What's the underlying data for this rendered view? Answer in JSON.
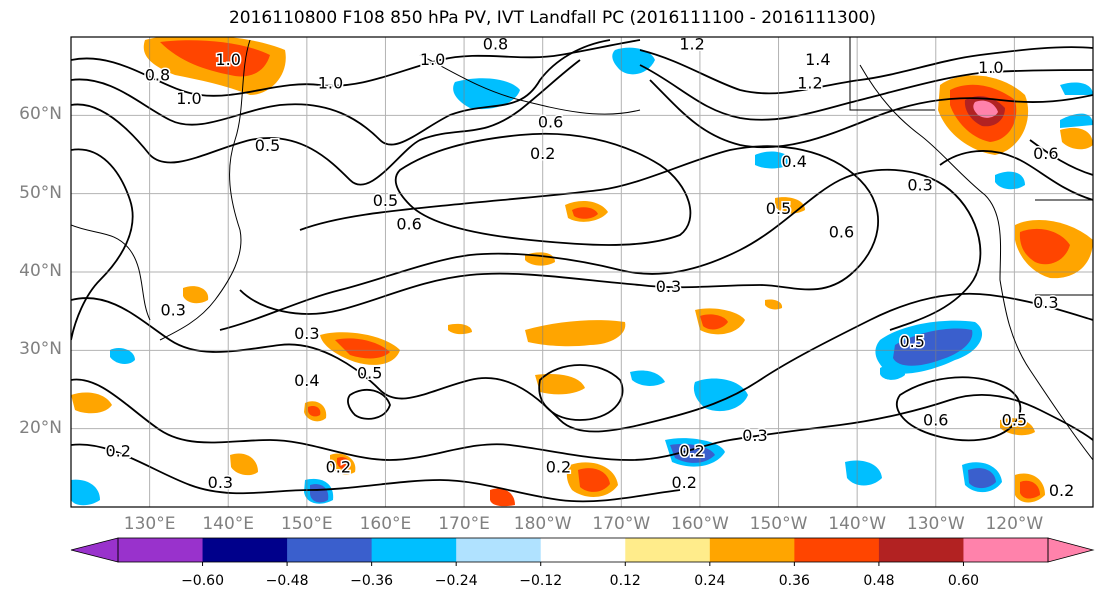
{
  "title": "2016110800 F108 850 hPa PV, IVT Landfall PC (2016111100 - 2016111300)",
  "lat_labels": [
    {
      "text": "60°N",
      "lat": 60
    },
    {
      "text": "50°N",
      "lat": 50
    },
    {
      "text": "40°N",
      "lat": 40
    },
    {
      "text": "30°N",
      "lat": 30
    },
    {
      "text": "20°N",
      "lat": 20
    }
  ],
  "lon_labels": [
    {
      "text": "130°E",
      "lon": 130
    },
    {
      "text": "140°E",
      "lon": 140
    },
    {
      "text": "150°E",
      "lon": 150
    },
    {
      "text": "160°E",
      "lon": 160
    },
    {
      "text": "170°E",
      "lon": 170
    },
    {
      "text": "180°W",
      "lon": 180
    },
    {
      "text": "170°W",
      "lon": 190
    },
    {
      "text": "160°W",
      "lon": 200
    },
    {
      "text": "150°W",
      "lon": 210
    },
    {
      "text": "140°W",
      "lon": 220
    },
    {
      "text": "130°W",
      "lon": 230
    },
    {
      "text": "120°W",
      "lon": 240
    }
  ],
  "colorbar": {
    "colors": [
      "#9932cc",
      "#00008b",
      "#3a5fcd",
      "#00bfff",
      "#b0e2ff",
      "#ffffff",
      "#ffec8b",
      "#ffa500",
      "#ff4500",
      "#b22222",
      "#ff82ab"
    ],
    "labels": [
      "−0.60",
      "−0.48",
      "−0.36",
      "−0.24",
      "−0.12",
      "0.12",
      "0.24",
      "0.36",
      "0.48",
      "0.60"
    ]
  },
  "pv_contour_labels": [
    {
      "text": "0.8",
      "lon": 131,
      "lat": 65
    },
    {
      "text": "1.0",
      "lon": 140,
      "lat": 67
    },
    {
      "text": "1.0",
      "lon": 135,
      "lat": 62
    },
    {
      "text": "0.8",
      "lon": 174,
      "lat": 69
    },
    {
      "text": "1.0",
      "lon": 166,
      "lat": 67
    },
    {
      "text": "1.0",
      "lon": 153,
      "lat": 64
    },
    {
      "text": "1.2",
      "lon": 199,
      "lat": 69
    },
    {
      "text": "1.4",
      "lon": 215,
      "lat": 67
    },
    {
      "text": "1.2",
      "lon": 214,
      "lat": 64
    },
    {
      "text": "1.0",
      "lon": 237,
      "lat": 66
    },
    {
      "text": "0.6",
      "lon": 181,
      "lat": 59
    },
    {
      "text": "0.5",
      "lon": 145,
      "lat": 56
    },
    {
      "text": "0.2",
      "lon": 180,
      "lat": 55
    },
    {
      "text": "0.4",
      "lon": 212,
      "lat": 54
    },
    {
      "text": "0.3",
      "lon": 228,
      "lat": 51
    },
    {
      "text": "0.6",
      "lon": 244,
      "lat": 55
    },
    {
      "text": "0.5",
      "lon": 160,
      "lat": 49
    },
    {
      "text": "0.6",
      "lon": 163,
      "lat": 46
    },
    {
      "text": "0.5",
      "lon": 210,
      "lat": 48
    },
    {
      "text": "0.6",
      "lon": 218,
      "lat": 45
    },
    {
      "text": "0.3",
      "lon": 196,
      "lat": 38
    },
    {
      "text": "0.3",
      "lon": 150,
      "lat": 32
    },
    {
      "text": "0.3",
      "lon": 133,
      "lat": 35
    },
    {
      "text": "0.5",
      "lon": 227,
      "lat": 31
    },
    {
      "text": "0.3",
      "lon": 244,
      "lat": 36
    },
    {
      "text": "0.4",
      "lon": 150,
      "lat": 26
    },
    {
      "text": "0.5",
      "lon": 158,
      "lat": 27
    },
    {
      "text": "0.6",
      "lon": 230,
      "lat": 21
    },
    {
      "text": "0.5",
      "lon": 240,
      "lat": 21
    },
    {
      "text": "0.3",
      "lon": 207,
      "lat": 19
    },
    {
      "text": "0.2",
      "lon": 199,
      "lat": 17
    },
    {
      "text": "0.2",
      "lon": 154,
      "lat": 15
    },
    {
      "text": "0.2",
      "lon": 182,
      "lat": 15
    },
    {
      "text": "0.3",
      "lon": 139,
      "lat": 13
    },
    {
      "text": "0.2",
      "lon": 198,
      "lat": 13
    },
    {
      "text": "0.2",
      "lon": 246,
      "lat": 12
    },
    {
      "text": "0.2",
      "lon": 126,
      "lat": 17
    }
  ]
}
